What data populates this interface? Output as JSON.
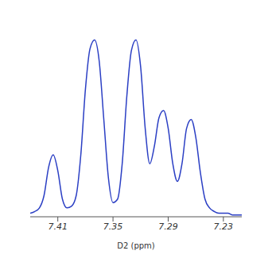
{
  "chart_data": {
    "type": "line",
    "x_label": "D2 (ppm)",
    "x": [
      7.44,
      7.435,
      7.43,
      7.425,
      7.42,
      7.415,
      7.41,
      7.405,
      7.4,
      7.395,
      7.39,
      7.385,
      7.38,
      7.375,
      7.37,
      7.365,
      7.36,
      7.355,
      7.35,
      7.345,
      7.34,
      7.335,
      7.33,
      7.325,
      7.32,
      7.315,
      7.31,
      7.305,
      7.3,
      7.295,
      7.29,
      7.285,
      7.28,
      7.275,
      7.27,
      7.265,
      7.26,
      7.255,
      7.25,
      7.245,
      7.24,
      7.235,
      7.23,
      7.225,
      7.22,
      7.215,
      7.21
    ],
    "values": [
      0.02,
      0.03,
      0.05,
      0.12,
      0.28,
      0.35,
      0.26,
      0.1,
      0.05,
      0.06,
      0.12,
      0.35,
      0.72,
      0.95,
      1.0,
      0.88,
      0.55,
      0.22,
      0.08,
      0.1,
      0.3,
      0.68,
      0.94,
      1.0,
      0.85,
      0.5,
      0.3,
      0.4,
      0.56,
      0.6,
      0.5,
      0.3,
      0.2,
      0.3,
      0.5,
      0.55,
      0.45,
      0.25,
      0.1,
      0.05,
      0.03,
      0.02,
      0.02,
      0.02,
      0.01,
      0.01,
      0.01
    ],
    "color": "#2b3fc4",
    "xlim": [
      7.44,
      7.21
    ],
    "xticks": [
      7.41,
      7.35,
      7.29,
      7.23
    ],
    "ylim": [
      0,
      1.1
    ],
    "grid": false,
    "tick_labels": "x"
  }
}
